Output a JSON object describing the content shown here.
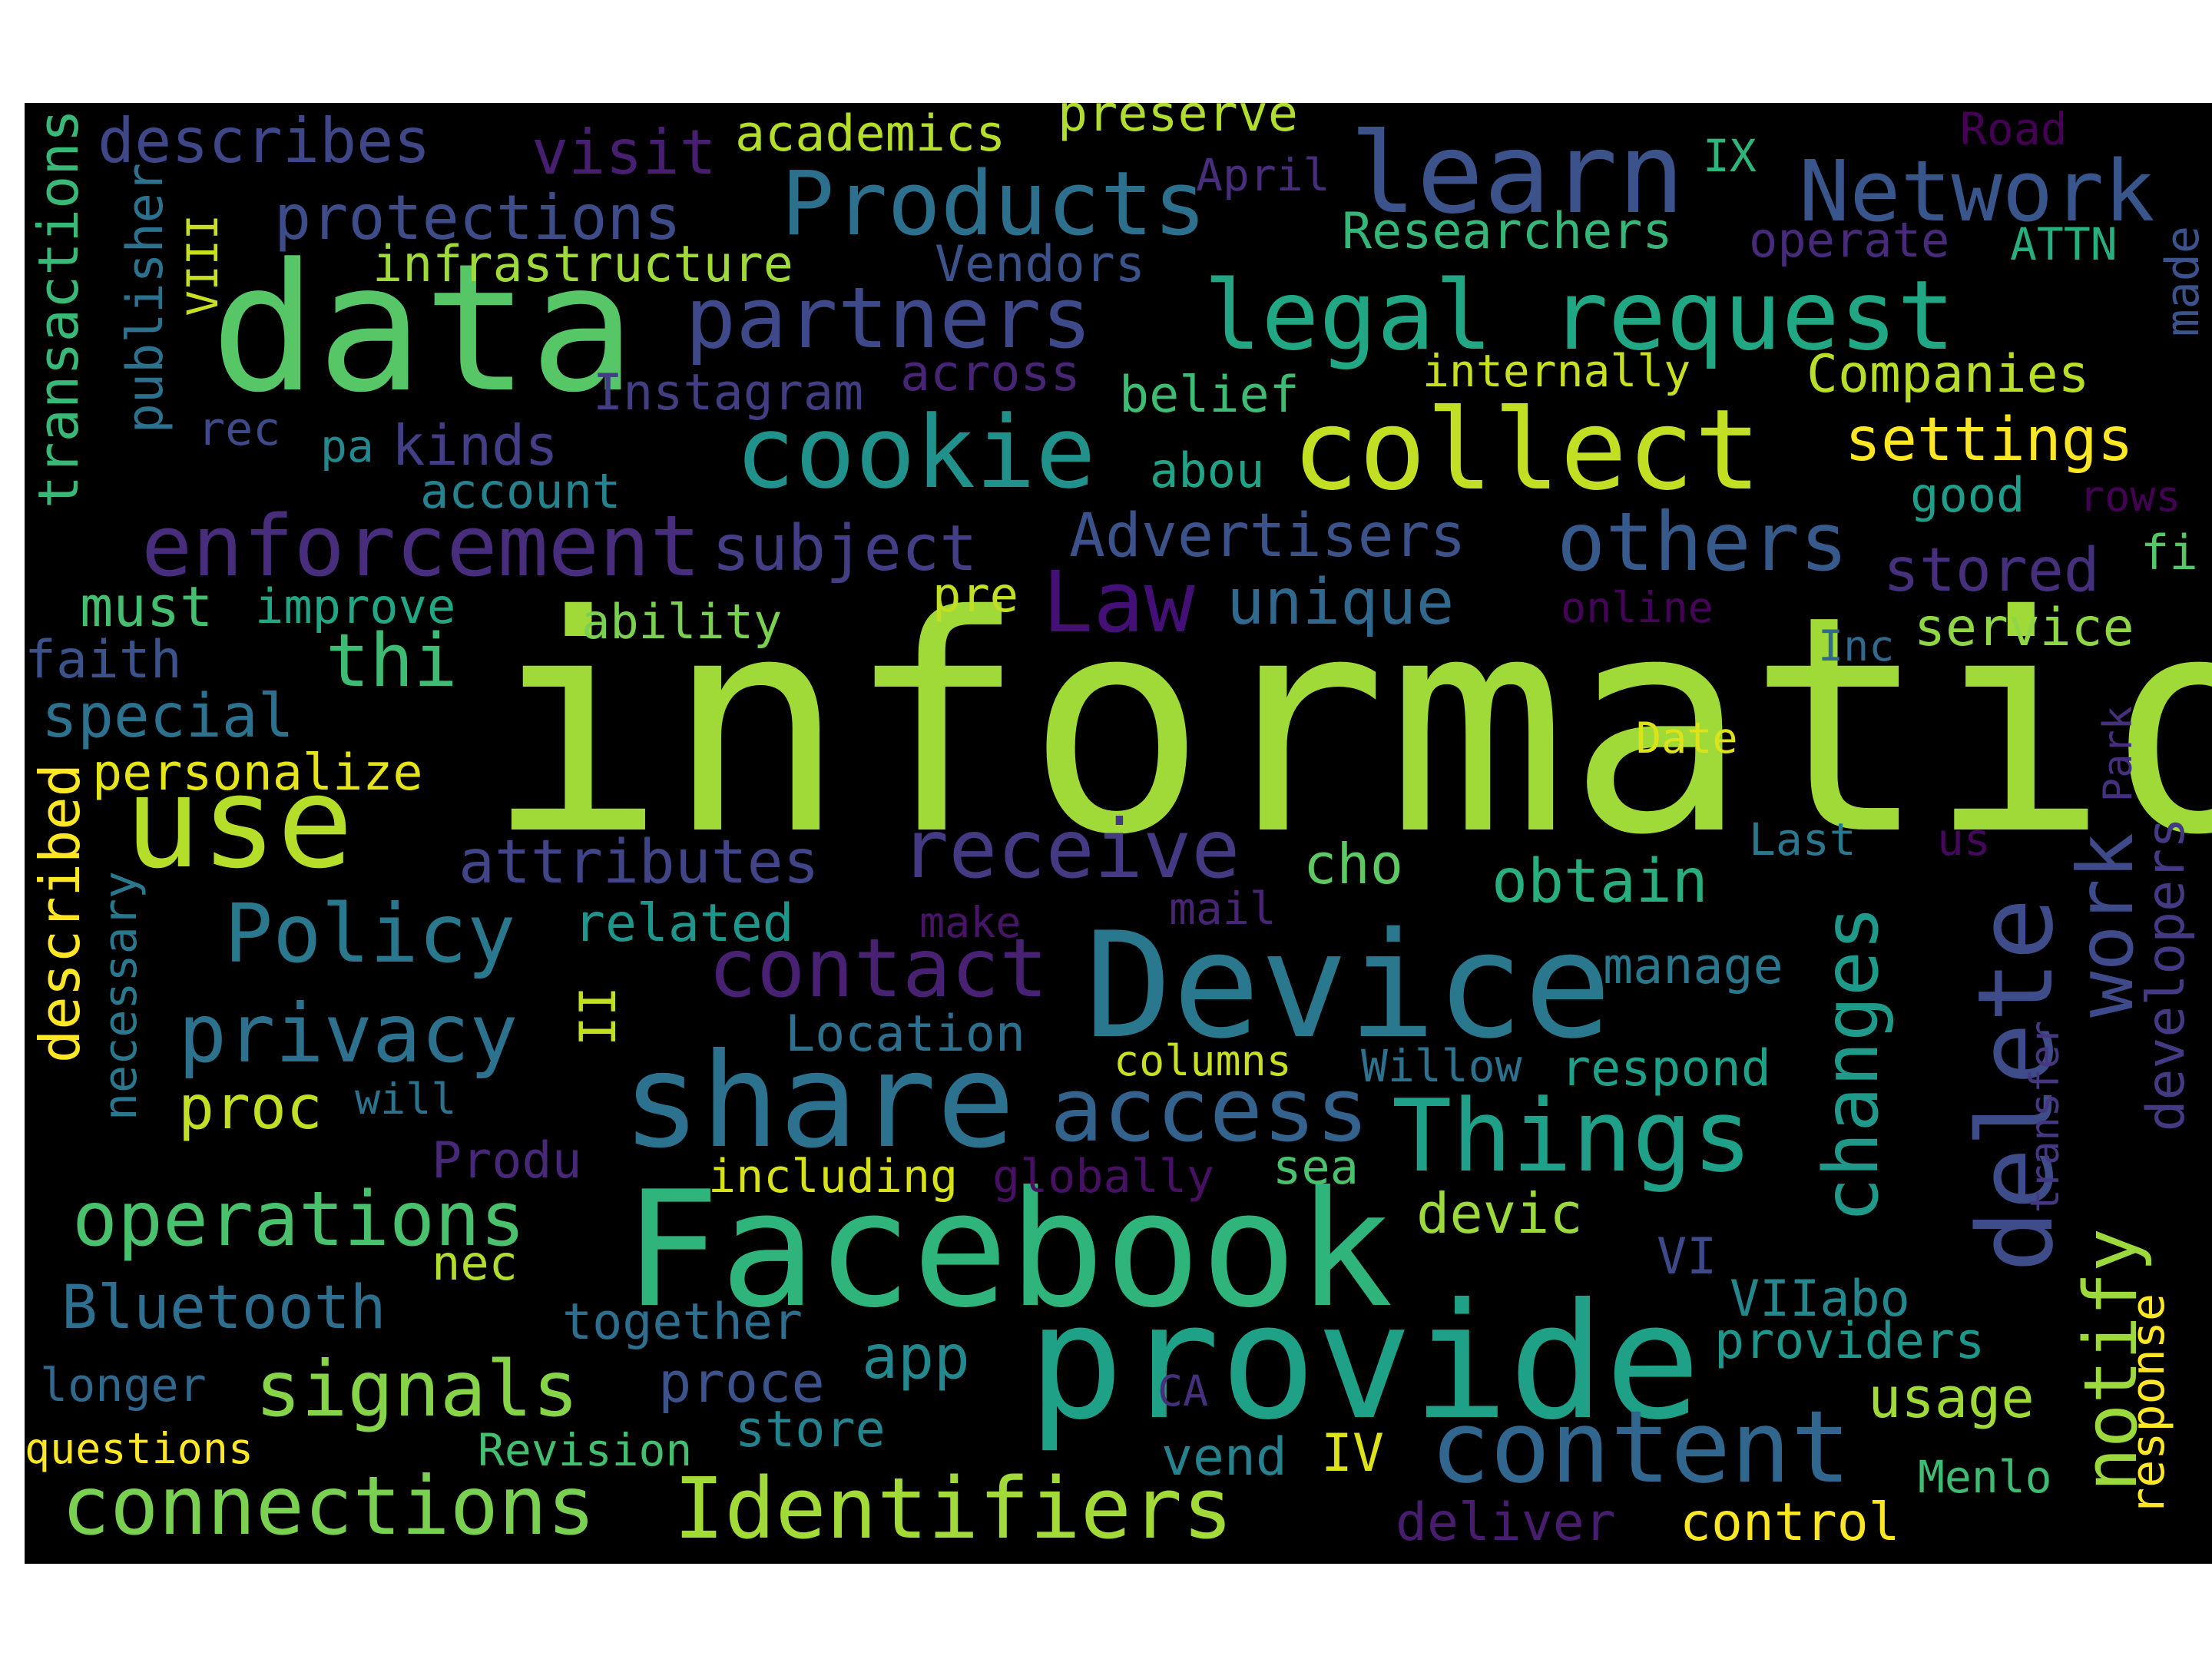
{
  "background": "#000000",
  "palette": [
    "#440154",
    "#482878",
    "#3e4a89",
    "#31688e",
    "#26828e",
    "#1f9e89",
    "#35b779",
    "#6ece58",
    "#b5de2b",
    "#fde725"
  ],
  "words": [
    {
      "text": "information",
      "color": "#a0da39",
      "vertical": false
    },
    {
      "text": "data",
      "color": "#56c667",
      "vertical": false
    },
    {
      "text": "Facebook",
      "color": "#2fb47c",
      "vertical": false
    },
    {
      "text": "provide",
      "color": "#1fa188",
      "vertical": false
    },
    {
      "text": "Device",
      "color": "#2a788e",
      "vertical": false
    },
    {
      "text": "share",
      "color": "#2c728e",
      "vertical": false
    },
    {
      "text": "use",
      "color": "#b5de2b",
      "vertical": false
    },
    {
      "text": "collect",
      "color": "#c2df23",
      "vertical": false
    },
    {
      "text": "legal request",
      "color": "#22a785",
      "vertical": false
    },
    {
      "text": "learn",
      "color": "#3b528b",
      "vertical": false
    },
    {
      "text": "content",
      "color": "#31668e",
      "vertical": false
    },
    {
      "text": "cookie",
      "color": "#21918c",
      "vertical": false
    },
    {
      "text": "Things",
      "color": "#1fa088",
      "vertical": false
    },
    {
      "text": "Products",
      "color": "#2d708e",
      "vertical": false
    },
    {
      "text": "delete",
      "color": "#3e4c8a",
      "vertical": true
    },
    {
      "text": "enforcement",
      "color": "#472d7b",
      "vertical": false
    },
    {
      "text": "Identifiers",
      "color": "#a2da37",
      "vertical": false
    },
    {
      "text": "access",
      "color": "#33628d",
      "vertical": false
    },
    {
      "text": "partners",
      "color": "#3e4989",
      "vertical": false
    },
    {
      "text": "Network",
      "color": "#39568c",
      "vertical": false
    },
    {
      "text": "connections",
      "color": "#7ad151",
      "vertical": false
    },
    {
      "text": "others",
      "color": "#375a8c",
      "vertical": false
    },
    {
      "text": "operations",
      "color": "#4ac16d",
      "vertical": false
    },
    {
      "text": "privacy",
      "color": "#2c728e",
      "vertical": false
    },
    {
      "text": "signals",
      "color": "#86d549",
      "vertical": false
    },
    {
      "text": "Policy",
      "color": "#2a788e",
      "vertical": false
    },
    {
      "text": "contact",
      "color": "#482173",
      "vertical": false
    },
    {
      "text": "receive",
      "color": "#443983",
      "vertical": false
    },
    {
      "text": "changes",
      "color": "#1f9a8a",
      "vertical": true
    },
    {
      "text": "notify",
      "color": "#9bd93c",
      "vertical": true
    },
    {
      "text": "work",
      "color": "#3e4a89",
      "vertical": true
    },
    {
      "text": "Law",
      "color": "#440f76",
      "vertical": false
    },
    {
      "text": "thi",
      "color": "#3fbc73",
      "vertical": false
    },
    {
      "text": "attributes",
      "color": "#414487",
      "vertical": false
    },
    {
      "text": "subject",
      "color": "#433e85",
      "vertical": false
    },
    {
      "text": "Advertisers",
      "color": "#3b528b",
      "vertical": false
    },
    {
      "text": "unique",
      "color": "#31688e",
      "vertical": false
    },
    {
      "text": "settings",
      "color": "#fde725",
      "vertical": false
    },
    {
      "text": "stored",
      "color": "#46307e",
      "vertical": false
    },
    {
      "text": "Companies",
      "color": "#b8de29",
      "vertical": false
    },
    {
      "text": "describes",
      "color": "#3f4788",
      "vertical": false
    },
    {
      "text": "visit",
      "color": "#481f70",
      "vertical": false
    },
    {
      "text": "academics",
      "color": "#b5de2b",
      "vertical": false
    },
    {
      "text": "preserve",
      "color": "#b0dd2f",
      "vertical": false
    },
    {
      "text": "protections",
      "color": "#3e4c8a",
      "vertical": false
    },
    {
      "text": "infrastructure",
      "color": "#9fda3a",
      "vertical": false
    },
    {
      "text": "Vendors",
      "color": "#3b528b",
      "vertical": false
    },
    {
      "text": "Researchers",
      "color": "#35b779",
      "vertical": false
    },
    {
      "text": "operate",
      "color": "#472a7a",
      "vertical": false
    },
    {
      "text": "ATTN",
      "color": "#29af7f",
      "vertical": false
    },
    {
      "text": "made",
      "color": "#3b528b",
      "vertical": true
    },
    {
      "text": "April",
      "color": "#472d7b",
      "vertical": false
    },
    {
      "text": "IX",
      "color": "#2fb47c",
      "vertical": false
    },
    {
      "text": "Road",
      "color": "#440154",
      "vertical": false
    },
    {
      "text": "internally",
      "color": "#c8e020",
      "vertical": false
    },
    {
      "text": "Instagram",
      "color": "#433d84",
      "vertical": false
    },
    {
      "text": "across",
      "color": "#482475",
      "vertical": false
    },
    {
      "text": "belief",
      "color": "#3fbc73",
      "vertical": false
    },
    {
      "text": "kinds",
      "color": "#433e85",
      "vertical": false
    },
    {
      "text": "pa",
      "color": "#23898e",
      "vertical": false
    },
    {
      "text": "rec",
      "color": "#3e4a89",
      "vertical": false
    },
    {
      "text": "account",
      "color": "#26828e",
      "vertical": false
    },
    {
      "text": "abou",
      "color": "#20a386",
      "vertical": false
    },
    {
      "text": "good",
      "color": "#1f9e89",
      "vertical": false
    },
    {
      "text": "rows",
      "color": "#440154",
      "vertical": false
    },
    {
      "text": "fi",
      "color": "#56c667",
      "vertical": false
    },
    {
      "text": "must",
      "color": "#44bf70",
      "vertical": false
    },
    {
      "text": "improve",
      "color": "#22a785",
      "vertical": false
    },
    {
      "text": "ability",
      "color": "#7ad151",
      "vertical": false
    },
    {
      "text": "pre",
      "color": "#c2df23",
      "vertical": false
    },
    {
      "text": "online",
      "color": "#450457",
      "vertical": false
    },
    {
      "text": "Inc",
      "color": "#31688e",
      "vertical": false
    },
    {
      "text": "service",
      "color": "#8fd744",
      "vertical": false
    },
    {
      "text": "faith",
      "color": "#3b528b",
      "vertical": false
    },
    {
      "text": "special",
      "color": "#2c728e",
      "vertical": false
    },
    {
      "text": "personalize",
      "color": "#e5e419",
      "vertical": false
    },
    {
      "text": "Date",
      "color": "#dde318",
      "vertical": false
    },
    {
      "text": "Park",
      "color": "#46307e",
      "vertical": true
    },
    {
      "text": "Last",
      "color": "#2a788e",
      "vertical": false
    },
    {
      "text": "us",
      "color": "#46085c",
      "vertical": false
    },
    {
      "text": "cho",
      "color": "#5ec962",
      "vertical": false
    },
    {
      "text": "obtain",
      "color": "#29af7f",
      "vertical": false
    },
    {
      "text": "related",
      "color": "#1f968b",
      "vertical": false
    },
    {
      "text": "make",
      "color": "#481467",
      "vertical": false
    },
    {
      "text": "mail",
      "color": "#482475",
      "vertical": false
    },
    {
      "text": "manage",
      "color": "#2a788e",
      "vertical": false
    },
    {
      "text": "developers",
      "color": "#443a83",
      "vertical": true
    },
    {
      "text": "transfer",
      "color": "#453781",
      "vertical": true
    },
    {
      "text": "II",
      "color": "#c0df25",
      "vertical": true
    },
    {
      "text": "Location",
      "color": "#2d708e",
      "vertical": false
    },
    {
      "text": "columns",
      "color": "#c8e020",
      "vertical": false
    },
    {
      "text": "Willow",
      "color": "#2c728e",
      "vertical": false
    },
    {
      "text": "respond",
      "color": "#1fa088",
      "vertical": false
    },
    {
      "text": "proc",
      "color": "#c2df23",
      "vertical": false
    },
    {
      "text": "will",
      "color": "#2c728e",
      "vertical": false
    },
    {
      "text": "Produ",
      "color": "#482878",
      "vertical": false
    },
    {
      "text": "including",
      "color": "#d8e219",
      "vertical": false
    },
    {
      "text": "globally",
      "color": "#471063",
      "vertical": false
    },
    {
      "text": "sea",
      "color": "#4ac16d",
      "vertical": false
    },
    {
      "text": "devic",
      "color": "#9bd93c",
      "vertical": false
    },
    {
      "text": "VI",
      "color": "#3e4989",
      "vertical": false
    },
    {
      "text": "VIIabo",
      "color": "#24878e",
      "vertical": false
    },
    {
      "text": "nec",
      "color": "#b0dd2f",
      "vertical": false
    },
    {
      "text": "Bluetooth",
      "color": "#2e6e8e",
      "vertical": false
    },
    {
      "text": "together",
      "color": "#2e6e8e",
      "vertical": false
    },
    {
      "text": "app",
      "color": "#23898e",
      "vertical": false
    },
    {
      "text": "proce",
      "color": "#3b528b",
      "vertical": false
    },
    {
      "text": "longer",
      "color": "#31688e",
      "vertical": false
    },
    {
      "text": "providers",
      "color": "#1f968b",
      "vertical": false
    },
    {
      "text": "usage",
      "color": "#a0da39",
      "vertical": false
    },
    {
      "text": "response",
      "color": "#fde725",
      "vertical": true
    },
    {
      "text": "CA",
      "color": "#46307e",
      "vertical": false
    },
    {
      "text": "store",
      "color": "#25838e",
      "vertical": false
    },
    {
      "text": "vend",
      "color": "#26828e",
      "vertical": false
    },
    {
      "text": "questions",
      "color": "#fde725",
      "vertical": false
    },
    {
      "text": "Revision",
      "color": "#44bf70",
      "vertical": false
    },
    {
      "text": "IV",
      "color": "#dde318",
      "vertical": false
    },
    {
      "text": "Menlo",
      "color": "#3fbc73",
      "vertical": false
    },
    {
      "text": "deliver",
      "color": "#481c6e",
      "vertical": false
    },
    {
      "text": "control",
      "color": "#fde725",
      "vertical": false
    },
    {
      "text": "transactions",
      "color": "#38b977",
      "vertical": true
    },
    {
      "text": "publisher",
      "color": "#2c728e",
      "vertical": true
    },
    {
      "text": "VIII",
      "color": "#c8e020",
      "vertical": true
    },
    {
      "text": "described",
      "color": "#fde725",
      "vertical": true
    },
    {
      "text": "necessary",
      "color": "#2a788e",
      "vertical": true
    }
  ]
}
